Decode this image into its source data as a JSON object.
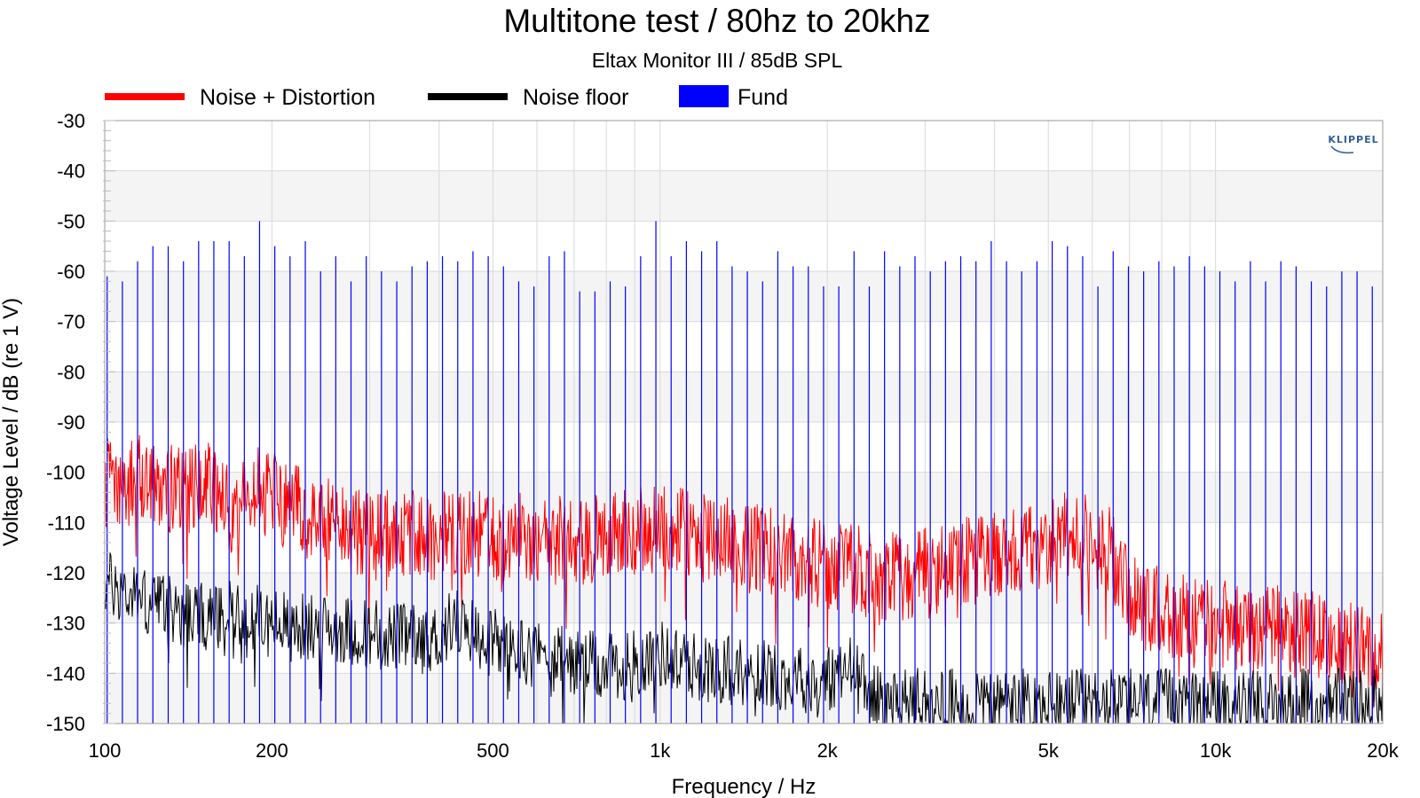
{
  "chart_data": {
    "type": "line",
    "title": "Multitone test / 80hz to 20khz",
    "subtitle": "Eltax Monitor III / 85dB SPL",
    "xlabel": "Frequency / Hz",
    "ylabel": "Voltage Level / dB (re 1 V)",
    "xscale": "log",
    "xlim": [
      100,
      20000
    ],
    "ylim": [
      -150,
      -30
    ],
    "x_ticks": [
      {
        "value": 100,
        "label": "100"
      },
      {
        "value": 200,
        "label": "200"
      },
      {
        "value": 500,
        "label": "500"
      },
      {
        "value": 1000,
        "label": "1k"
      },
      {
        "value": 2000,
        "label": "2k"
      },
      {
        "value": 5000,
        "label": "5k"
      },
      {
        "value": 10000,
        "label": "10k"
      },
      {
        "value": 20000,
        "label": "20k"
      }
    ],
    "y_ticks": [
      -30,
      -40,
      -50,
      -60,
      -70,
      -80,
      -90,
      -100,
      -110,
      -120,
      -130,
      -140,
      -150
    ],
    "grid": true,
    "legend_position": "top",
    "logo": "KLIPPEL",
    "series": [
      {
        "name": "Noise + Distortion",
        "color": "#ff0000",
        "render": "line",
        "points": [
          [
            100,
            -102
          ],
          [
            110,
            -103
          ],
          [
            120,
            -100
          ],
          [
            130,
            -103
          ],
          [
            140,
            -104
          ],
          [
            150,
            -101
          ],
          [
            160,
            -106
          ],
          [
            170,
            -107
          ],
          [
            180,
            -106
          ],
          [
            190,
            -103
          ],
          [
            200,
            -105
          ],
          [
            220,
            -107
          ],
          [
            250,
            -110
          ],
          [
            280,
            -112
          ],
          [
            300,
            -113
          ],
          [
            350,
            -112
          ],
          [
            400,
            -113
          ],
          [
            450,
            -112
          ],
          [
            500,
            -113
          ],
          [
            600,
            -113
          ],
          [
            700,
            -114
          ],
          [
            800,
            -113
          ],
          [
            900,
            -112
          ],
          [
            1000,
            -111
          ],
          [
            1100,
            -112
          ],
          [
            1200,
            -113
          ],
          [
            1400,
            -114
          ],
          [
            1600,
            -116
          ],
          [
            1800,
            -117
          ],
          [
            2000,
            -119
          ],
          [
            2200,
            -119
          ],
          [
            2500,
            -121
          ],
          [
            3000,
            -120
          ],
          [
            3500,
            -118
          ],
          [
            4000,
            -117
          ],
          [
            4500,
            -115
          ],
          [
            5000,
            -114
          ],
          [
            5500,
            -112
          ],
          [
            6000,
            -114
          ],
          [
            6500,
            -116
          ],
          [
            7000,
            -125
          ],
          [
            8000,
            -128
          ],
          [
            9000,
            -129
          ],
          [
            10000,
            -130
          ],
          [
            12000,
            -131
          ],
          [
            14000,
            -132
          ],
          [
            16000,
            -133
          ],
          [
            18000,
            -134
          ],
          [
            20000,
            -134
          ]
        ]
      },
      {
        "name": "Noise floor",
        "color": "#000000",
        "render": "line",
        "points": [
          [
            100,
            -122
          ],
          [
            110,
            -124
          ],
          [
            120,
            -126
          ],
          [
            130,
            -127
          ],
          [
            140,
            -128
          ],
          [
            150,
            -129
          ],
          [
            170,
            -128
          ],
          [
            200,
            -130
          ],
          [
            230,
            -131
          ],
          [
            260,
            -131
          ],
          [
            300,
            -132
          ],
          [
            350,
            -133
          ],
          [
            400,
            -133
          ],
          [
            420,
            -129
          ],
          [
            450,
            -131
          ],
          [
            500,
            -134
          ],
          [
            600,
            -136
          ],
          [
            700,
            -138
          ],
          [
            800,
            -139
          ],
          [
            900,
            -138
          ],
          [
            1000,
            -136
          ],
          [
            1100,
            -138
          ],
          [
            1200,
            -139
          ],
          [
            1500,
            -140
          ],
          [
            1800,
            -141
          ],
          [
            2000,
            -141
          ],
          [
            2200,
            -139
          ],
          [
            2400,
            -145
          ],
          [
            3000,
            -146
          ],
          [
            4000,
            -146
          ],
          [
            5000,
            -146
          ],
          [
            6000,
            -146
          ],
          [
            8000,
            -146
          ],
          [
            10000,
            -146
          ],
          [
            15000,
            -146
          ],
          [
            20000,
            -146
          ]
        ]
      },
      {
        "name": "Fund",
        "color": "#0000ff",
        "render": "stems",
        "points": [
          [
            101,
            -61
          ],
          [
            107.6,
            -62
          ],
          [
            114.6,
            -58
          ],
          [
            122.1,
            -55
          ],
          [
            130.1,
            -55
          ],
          [
            138.6,
            -58
          ],
          [
            147.6,
            -54
          ],
          [
            157.2,
            -54
          ],
          [
            167.5,
            -54
          ],
          [
            178.4,
            -57
          ],
          [
            190.0,
            -50
          ],
          [
            202.4,
            -55
          ],
          [
            215.6,
            -57
          ],
          [
            229.7,
            -54
          ],
          [
            244.7,
            -60
          ],
          [
            260.6,
            -57
          ],
          [
            277.6,
            -62
          ],
          [
            295.7,
            -57
          ],
          [
            315.0,
            -60
          ],
          [
            335.6,
            -62
          ],
          [
            357.5,
            -59
          ],
          [
            380.8,
            -58
          ],
          [
            405.6,
            -57
          ],
          [
            432.1,
            -58
          ],
          [
            460.3,
            -56
          ],
          [
            490.3,
            -57
          ],
          [
            522.3,
            -59
          ],
          [
            556.4,
            -62
          ],
          [
            592.7,
            -63
          ],
          [
            631.3,
            -57
          ],
          [
            672.5,
            -56
          ],
          [
            716.4,
            -64
          ],
          [
            763.1,
            -64
          ],
          [
            812.9,
            -62
          ],
          [
            865.9,
            -63
          ],
          [
            922.4,
            -57
          ],
          [
            982.6,
            -50
          ],
          [
            1046.7,
            -57
          ],
          [
            1115.0,
            -54
          ],
          [
            1187.7,
            -56
          ],
          [
            1265.2,
            -54
          ],
          [
            1347.7,
            -59
          ],
          [
            1435.6,
            -60
          ],
          [
            1529.3,
            -62
          ],
          [
            1629.0,
            -56
          ],
          [
            1735.3,
            -59
          ],
          [
            1848.5,
            -59
          ],
          [
            1969.1,
            -63
          ],
          [
            2097.5,
            -63
          ],
          [
            2234.3,
            -56
          ],
          [
            2380.1,
            -63
          ],
          [
            2535.3,
            -56
          ],
          [
            2700.7,
            -59
          ],
          [
            2876.9,
            -57
          ],
          [
            3064.6,
            -60
          ],
          [
            3264.5,
            -58
          ],
          [
            3477.5,
            -57
          ],
          [
            3704.3,
            -58
          ],
          [
            3945.9,
            -54
          ],
          [
            4203.3,
            -58
          ],
          [
            4477.5,
            -60
          ],
          [
            4769.6,
            -58
          ],
          [
            5080.8,
            -54
          ],
          [
            5412.2,
            -55
          ],
          [
            5765.3,
            -57
          ],
          [
            6141.3,
            -63
          ],
          [
            6541.9,
            -56
          ],
          [
            6968.7,
            -59
          ],
          [
            7423.3,
            -60
          ],
          [
            7907.6,
            -58
          ],
          [
            8423.4,
            -59
          ],
          [
            8972.9,
            -57
          ],
          [
            9558.3,
            -59
          ],
          [
            10181.8,
            -60
          ],
          [
            10846.0,
            -62
          ],
          [
            11553.6,
            -58
          ],
          [
            12307.3,
            -62
          ],
          [
            13110.1,
            -58
          ],
          [
            13965.3,
            -59
          ],
          [
            14876.4,
            -62
          ],
          [
            15846.8,
            -63
          ],
          [
            16880.6,
            -60
          ],
          [
            17981.8,
            -60
          ],
          [
            19154.8,
            -63
          ]
        ]
      }
    ]
  }
}
